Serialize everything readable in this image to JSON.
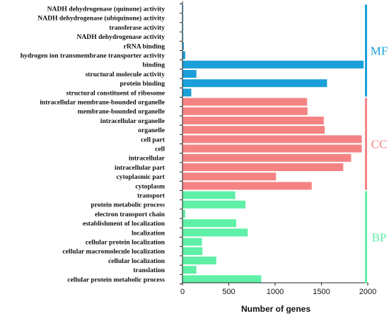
{
  "chart_data": {
    "type": "bar",
    "orientation": "horizontal",
    "xlabel": "Number of genes",
    "xlim": [
      0,
      2000
    ],
    "xticks": [
      0,
      500,
      1000,
      1500,
      2000
    ],
    "groups": [
      {
        "name": "MF",
        "color": "#1a9fd8",
        "categories": [
          "NADH dehydrogenase (quinone) activity",
          "NADH dehydrogenase (ubiquinone) activity",
          "transferase activity",
          "NADH dehydrogenase activity",
          "rRNA binding",
          "hydrogen ion transmembrane transporter activity",
          "binding",
          "structural molecule activity",
          "protein binding",
          "structural constituent of ribosome"
        ],
        "values": [
          8,
          8,
          8,
          8,
          14,
          30,
          1955,
          150,
          1560,
          95
        ]
      },
      {
        "name": "CC",
        "color": "#f58384",
        "categories": [
          "intracellular membrane-bounded organelle",
          "membrane-bounded organelle",
          "intracellular organelle",
          "organelle",
          "cell part",
          "cell",
          "intracellular",
          "intracellular part",
          "cytoplasmic part",
          "cytoplasm"
        ],
        "values": [
          1345,
          1350,
          1525,
          1535,
          1935,
          1935,
          1820,
          1735,
          1010,
          1395
        ]
      },
      {
        "name": "BP",
        "color": "#5ef0a6",
        "categories": [
          "transport",
          "protein metabolic process",
          "electron transport chain",
          "establishment of localization",
          "localization",
          "cellular protein localization",
          "cellular macromolecule localization",
          "cellular localization",
          "translation",
          "cellular protein metabolic process"
        ],
        "values": [
          570,
          680,
          30,
          580,
          705,
          210,
          215,
          365,
          150,
          850
        ]
      }
    ]
  }
}
